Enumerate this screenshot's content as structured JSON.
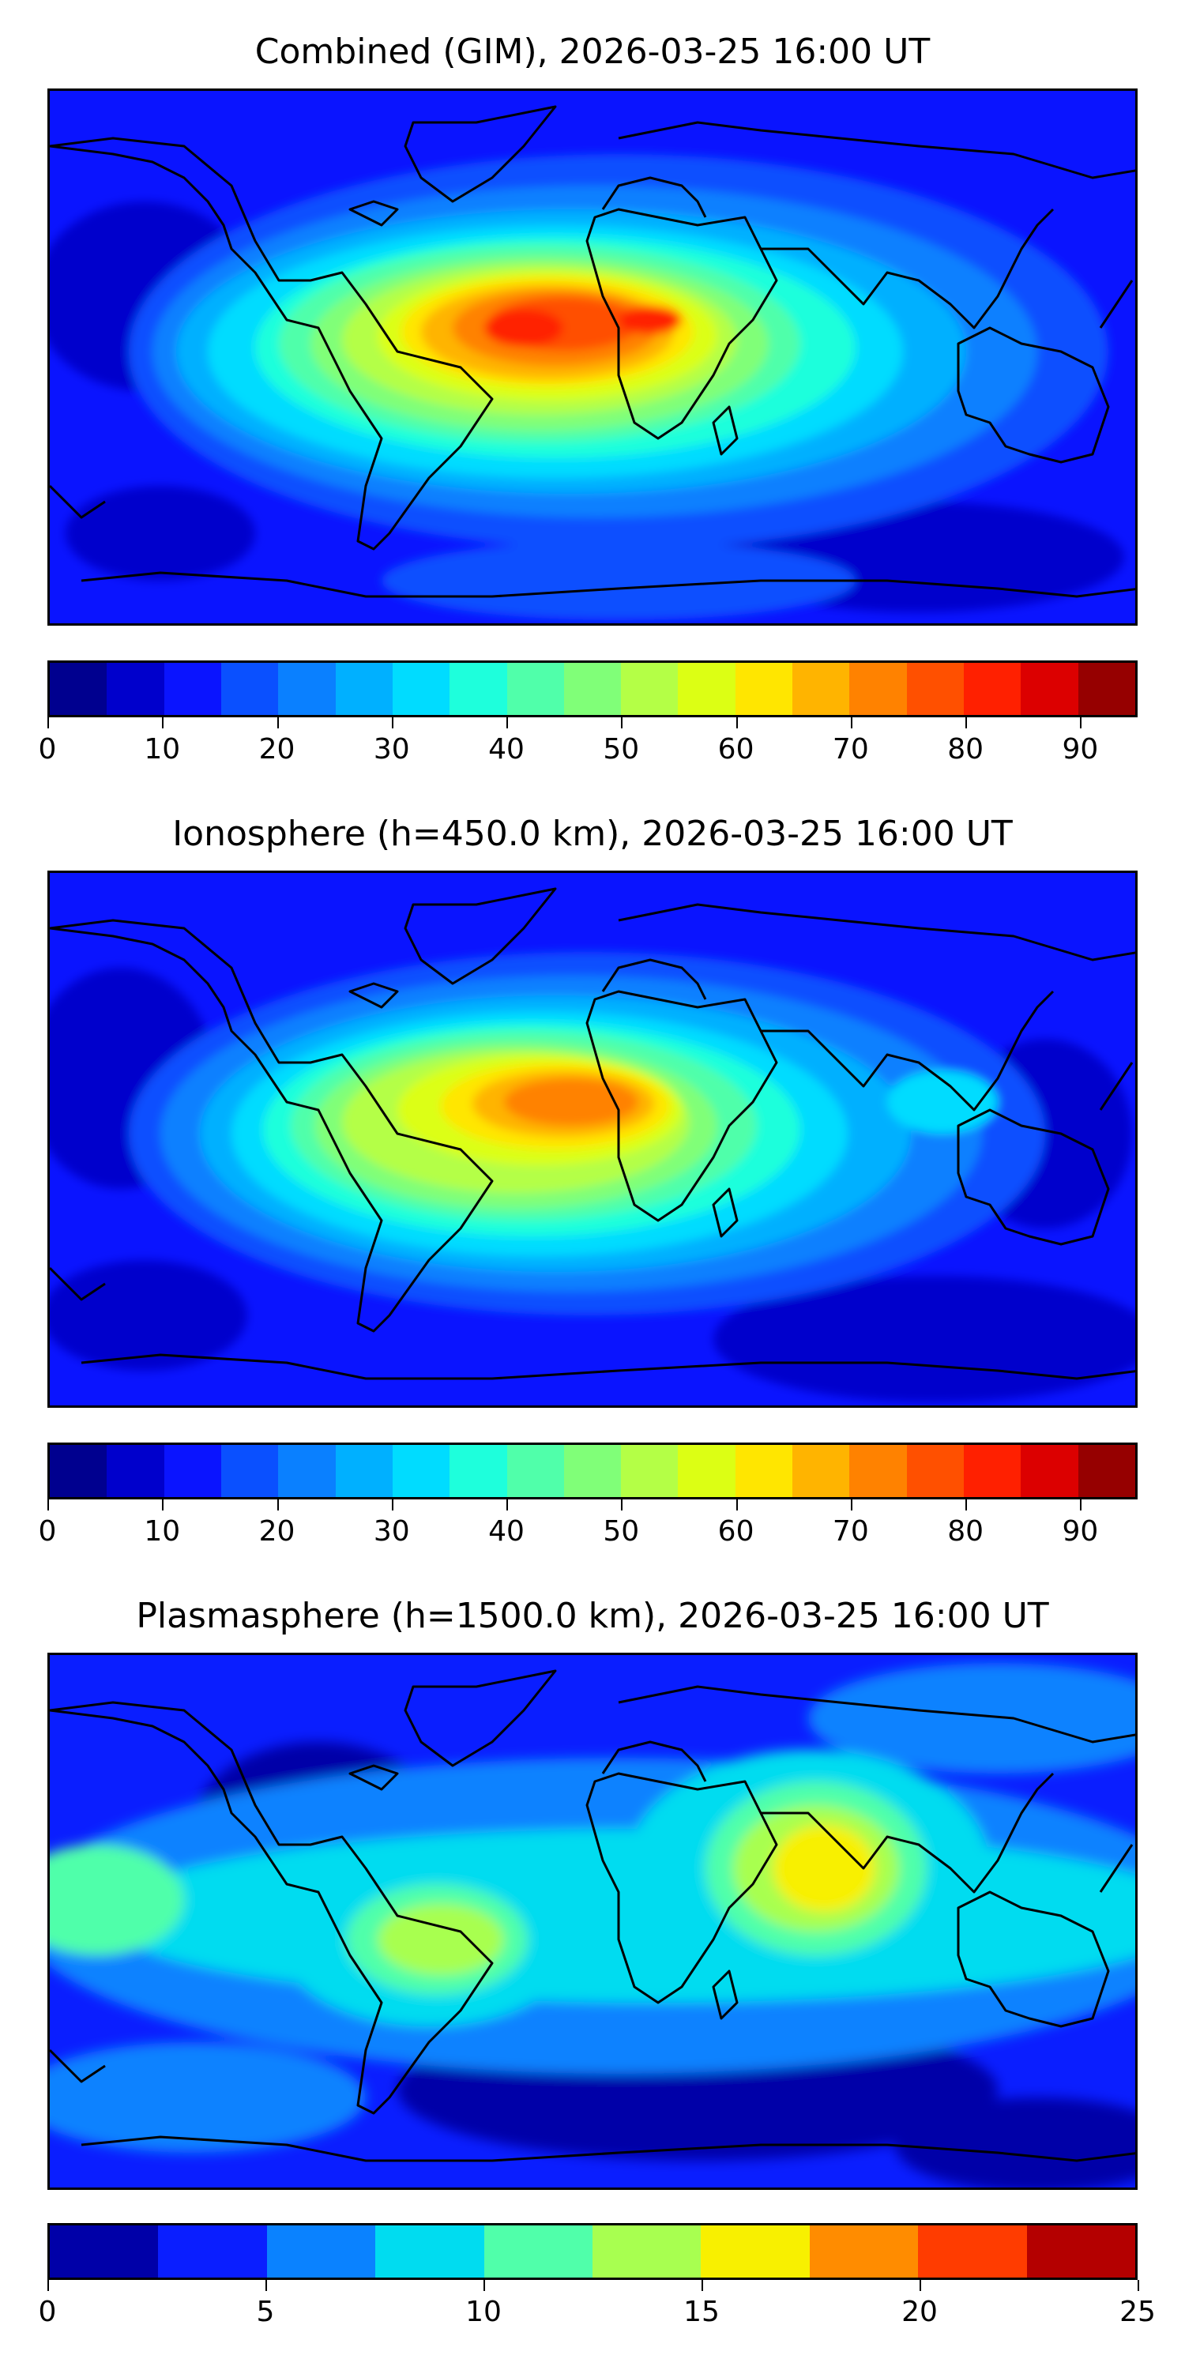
{
  "panels": [
    {
      "title": "Combined (GIM), 2026-03-25 16:00 UT",
      "colorbar": {
        "colors": [
          "#00008f",
          "#0000cc",
          "#0a14ff",
          "#0a50ff",
          "#0a80ff",
          "#00b0ff",
          "#00dcff",
          "#1effdc",
          "#50ffaa",
          "#80ff78",
          "#b4ff46",
          "#dcff14",
          "#ffe600",
          "#ffb400",
          "#ff8200",
          "#ff5000",
          "#ff2000",
          "#dc0000",
          "#960000"
        ],
        "tick_labels": [
          "0",
          "10",
          "20",
          "30",
          "40",
          "50",
          "60",
          "70",
          "80",
          "90"
        ],
        "tick_values": [
          0,
          10,
          20,
          30,
          40,
          50,
          60,
          70,
          80,
          90
        ],
        "range": [
          0,
          95
        ]
      }
    },
    {
      "title": "Ionosphere  (h=450.0 km), 2026-03-25 16:00 UT",
      "colorbar": {
        "colors": [
          "#00008f",
          "#0000cc",
          "#0a14ff",
          "#0a50ff",
          "#0a80ff",
          "#00b0ff",
          "#00dcff",
          "#1effdc",
          "#50ffaa",
          "#80ff78",
          "#b4ff46",
          "#dcff14",
          "#ffe600",
          "#ffb400",
          "#ff8200",
          "#ff5000",
          "#ff2000",
          "#dc0000",
          "#960000"
        ],
        "tick_labels": [
          "0",
          "10",
          "20",
          "30",
          "40",
          "50",
          "60",
          "70",
          "80",
          "90"
        ],
        "tick_values": [
          0,
          10,
          20,
          30,
          40,
          50,
          60,
          70,
          80,
          90
        ],
        "range": [
          0,
          95
        ]
      }
    },
    {
      "title": "Plasmasphere (h=1500.0 km), 2026-03-25 16:00 UT",
      "colorbar": {
        "colors": [
          "#0000a8",
          "#0a1eff",
          "#0a82ff",
          "#00dcf0",
          "#50ffaa",
          "#a8ff50",
          "#f8f000",
          "#ff8c00",
          "#ff3c00",
          "#b40000"
        ],
        "tick_labels": [
          "0",
          "5",
          "10",
          "15",
          "20",
          "25"
        ],
        "tick_values": [
          0,
          5,
          10,
          15,
          20,
          25
        ],
        "range": [
          0,
          25
        ]
      }
    }
  ]
}
